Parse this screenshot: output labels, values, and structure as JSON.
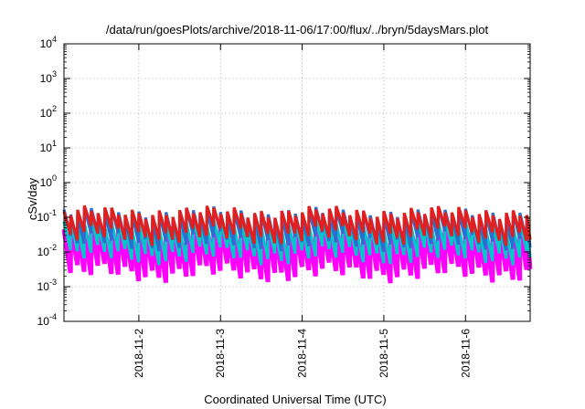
{
  "chart_data": {
    "type": "line",
    "title": "/data/run/goesPlots/archive/2018-11-06/17:00/flux/../bryn/5daysMars.plot",
    "xlabel": "Coordinated Universal Time (UTC)",
    "ylabel": "cSv/day",
    "yscale": "log",
    "ylim": [
      0.0001,
      10000
    ],
    "xlim": [
      "2018-11-01T02:00",
      "2018-11-06T19:00"
    ],
    "grid": true,
    "y_ticks": [
      {
        "value": 0.0001,
        "base": "10",
        "exp": "-4"
      },
      {
        "value": 0.001,
        "base": "10",
        "exp": "-3"
      },
      {
        "value": 0.01,
        "base": "10",
        "exp": "-2"
      },
      {
        "value": 0.1,
        "base": "10",
        "exp": "-1"
      },
      {
        "value": 1,
        "base": "10",
        "exp": "0"
      },
      {
        "value": 10,
        "base": "10",
        "exp": "1"
      },
      {
        "value": 100,
        "base": "10",
        "exp": "2"
      },
      {
        "value": 1000,
        "base": "10",
        "exp": "3"
      },
      {
        "value": 10000,
        "base": "10",
        "exp": "4"
      }
    ],
    "x_ticks": [
      "2018-11-2",
      "2018-11-3",
      "2018-11-4",
      "2018-11-5",
      "2018-11-6"
    ],
    "sawtooth_period_hours": 2,
    "series": [
      {
        "color": "#ff00ff",
        "peak": 0.045,
        "trough": 0.0025
      },
      {
        "color": "#00c8c8",
        "peak": 0.06,
        "trough": 0.008
      },
      {
        "color": "#2a6fd0",
        "peak": 0.13,
        "trough": 0.02
      },
      {
        "color": "#e02020",
        "peak": 0.14,
        "trough": 0.03
      }
    ]
  }
}
